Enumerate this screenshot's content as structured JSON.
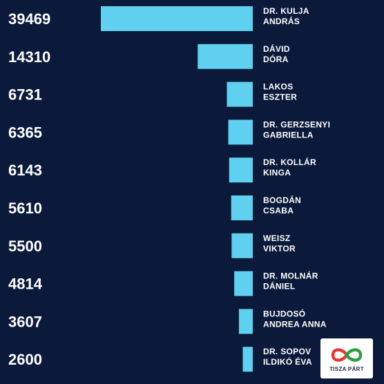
{
  "chart_data": {
    "type": "bar",
    "orientation": "horizontal",
    "bar_color": "#5fd0ef",
    "background": "#0b1a3a",
    "categories": [
      [
        "DR. KULJA",
        "ANDRÁS"
      ],
      [
        "DÁVID",
        "DÓRA"
      ],
      [
        "LAKOS",
        "ESZTER"
      ],
      [
        "DR. GERZSENYI",
        "GABRIELLA"
      ],
      [
        "DR. KOLLÁR",
        "KINGA"
      ],
      [
        "BOGDÁN",
        "CSABA"
      ],
      [
        "WEISZ",
        "VIKTOR"
      ],
      [
        "DR. MOLNÁR",
        "DÁNIEL"
      ],
      [
        "BUJDOSÓ",
        "ANDREA ANNA"
      ],
      [
        "DR. SOPOV",
        "ILDIKÓ ÉVA"
      ]
    ],
    "values": [
      39469,
      14310,
      6731,
      6365,
      6143,
      5610,
      5500,
      4814,
      3607,
      2600
    ],
    "value_labels": [
      "39469",
      "14310",
      "6731",
      "6365",
      "6143",
      "5610",
      "5500",
      "4814",
      "3607",
      "2600"
    ]
  },
  "logo": {
    "text": "TISZA PÁRT",
    "colors": {
      "red": "#e53935",
      "green": "#2e9e44"
    }
  }
}
